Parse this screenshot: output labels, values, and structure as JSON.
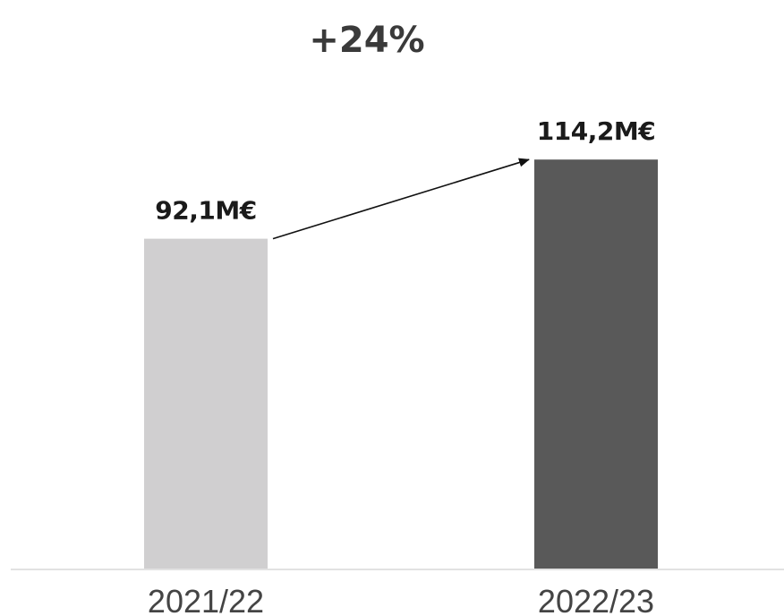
{
  "chart_data": {
    "type": "bar",
    "categories": [
      "2021/22",
      "2022/23"
    ],
    "values": [
      92.1,
      114.2
    ],
    "value_labels": [
      "92,1M€",
      "114,2M€"
    ],
    "bar_colors": [
      "#d0cfd0",
      "#595959"
    ],
    "axis_color": "#d9d9d9",
    "change_label": "+24%",
    "ylim": [
      0,
      120
    ],
    "grid": false,
    "legend": "none"
  }
}
